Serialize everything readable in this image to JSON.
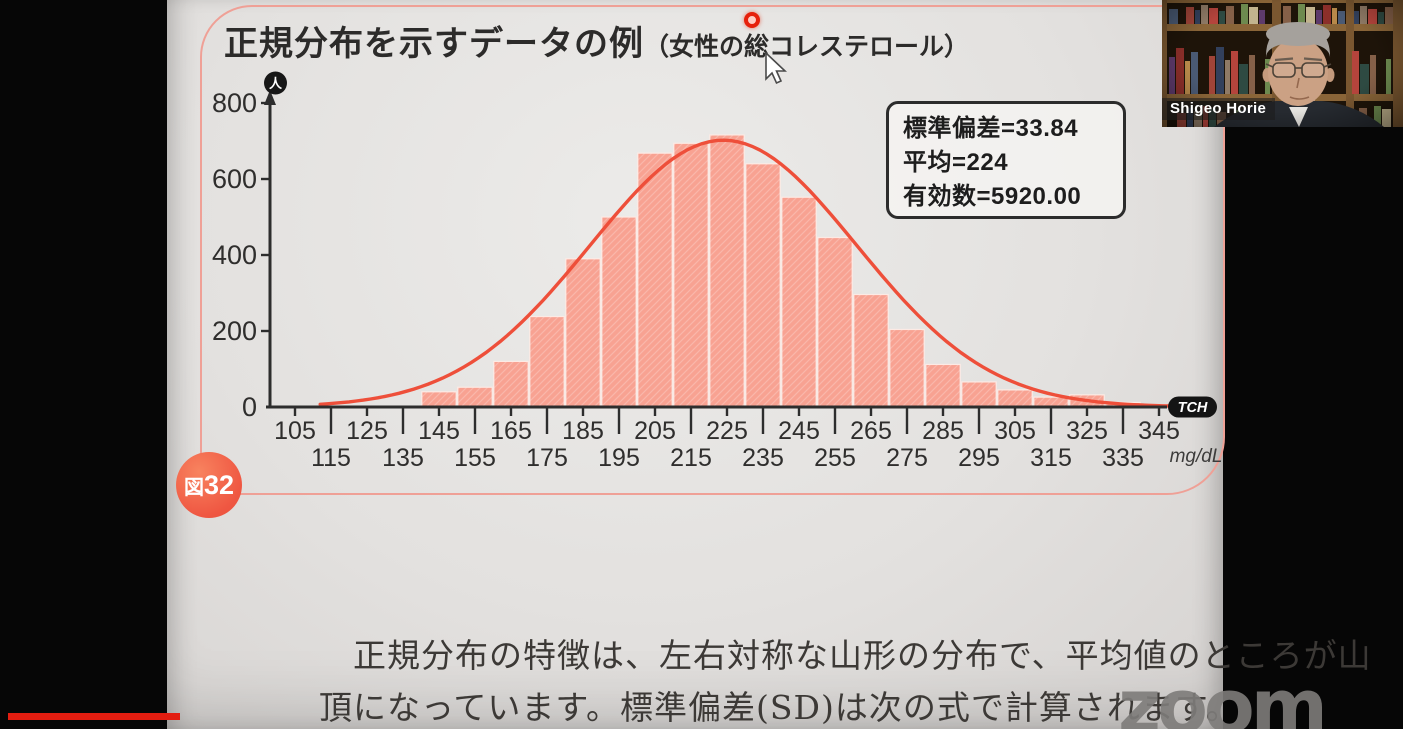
{
  "slide": {
    "title": "正規分布を示すデータの例",
    "title_suffix": "（女性の総コレステロール）",
    "figure_label": "図32",
    "body_line1": "正規分布の特徴は、左右対称な山形の分布で、平均値のところが山",
    "body_line2": "頂になっています。標準偏差(SD)は次の式で計算されます。"
  },
  "chart_data": {
    "type": "bar",
    "subtype": "histogram-with-normal-curve",
    "title": "正規分布を示すデータの例（女性の総コレステロール）",
    "stats_lines": [
      "標準偏差=33.84",
      "平均=224",
      "有効数=5920.00"
    ],
    "stats": {
      "sd": 33.84,
      "mean": 224,
      "n": 5920.0
    },
    "x_axis": {
      "ticks": [
        105,
        115,
        125,
        135,
        145,
        155,
        165,
        175,
        185,
        195,
        205,
        215,
        225,
        235,
        245,
        255,
        265,
        275,
        285,
        295,
        305,
        315,
        325,
        335,
        345
      ],
      "unit": "mg/dL",
      "end_label": "TCH",
      "range": [
        105,
        345
      ]
    },
    "y_axis": {
      "label": "人",
      "ticks": [
        0,
        200,
        400,
        600,
        800
      ],
      "ylim": [
        0,
        800
      ]
    },
    "categories": [
      145,
      155,
      165,
      175,
      185,
      195,
      205,
      215,
      225,
      235,
      245,
      255,
      265,
      275,
      285,
      295,
      305,
      315,
      325,
      335,
      345
    ],
    "values": [
      40,
      52,
      120,
      238,
      390,
      500,
      668,
      694,
      716,
      640,
      552,
      446,
      296,
      204,
      112,
      66,
      45,
      26,
      32,
      12,
      6
    ],
    "curve": {
      "shape": "normal",
      "mean": 224,
      "sd": 33.84,
      "peak": 702,
      "drawn_sigma": 37
    },
    "legend": "none",
    "grid": false,
    "colors": {
      "bar": "#f8a292",
      "bar_gap": "#fdeae4",
      "curve": "#ee4f3a",
      "axis": "#2d2d2d"
    }
  },
  "overlay": {
    "participant_name": "Shigeo Horie",
    "watermark_text": "zoom"
  },
  "colors": {
    "frame_border": "#efa096",
    "figure_badge": "#ef5742",
    "progress_bar": "#e31d10",
    "laser": "#e6200b"
  }
}
